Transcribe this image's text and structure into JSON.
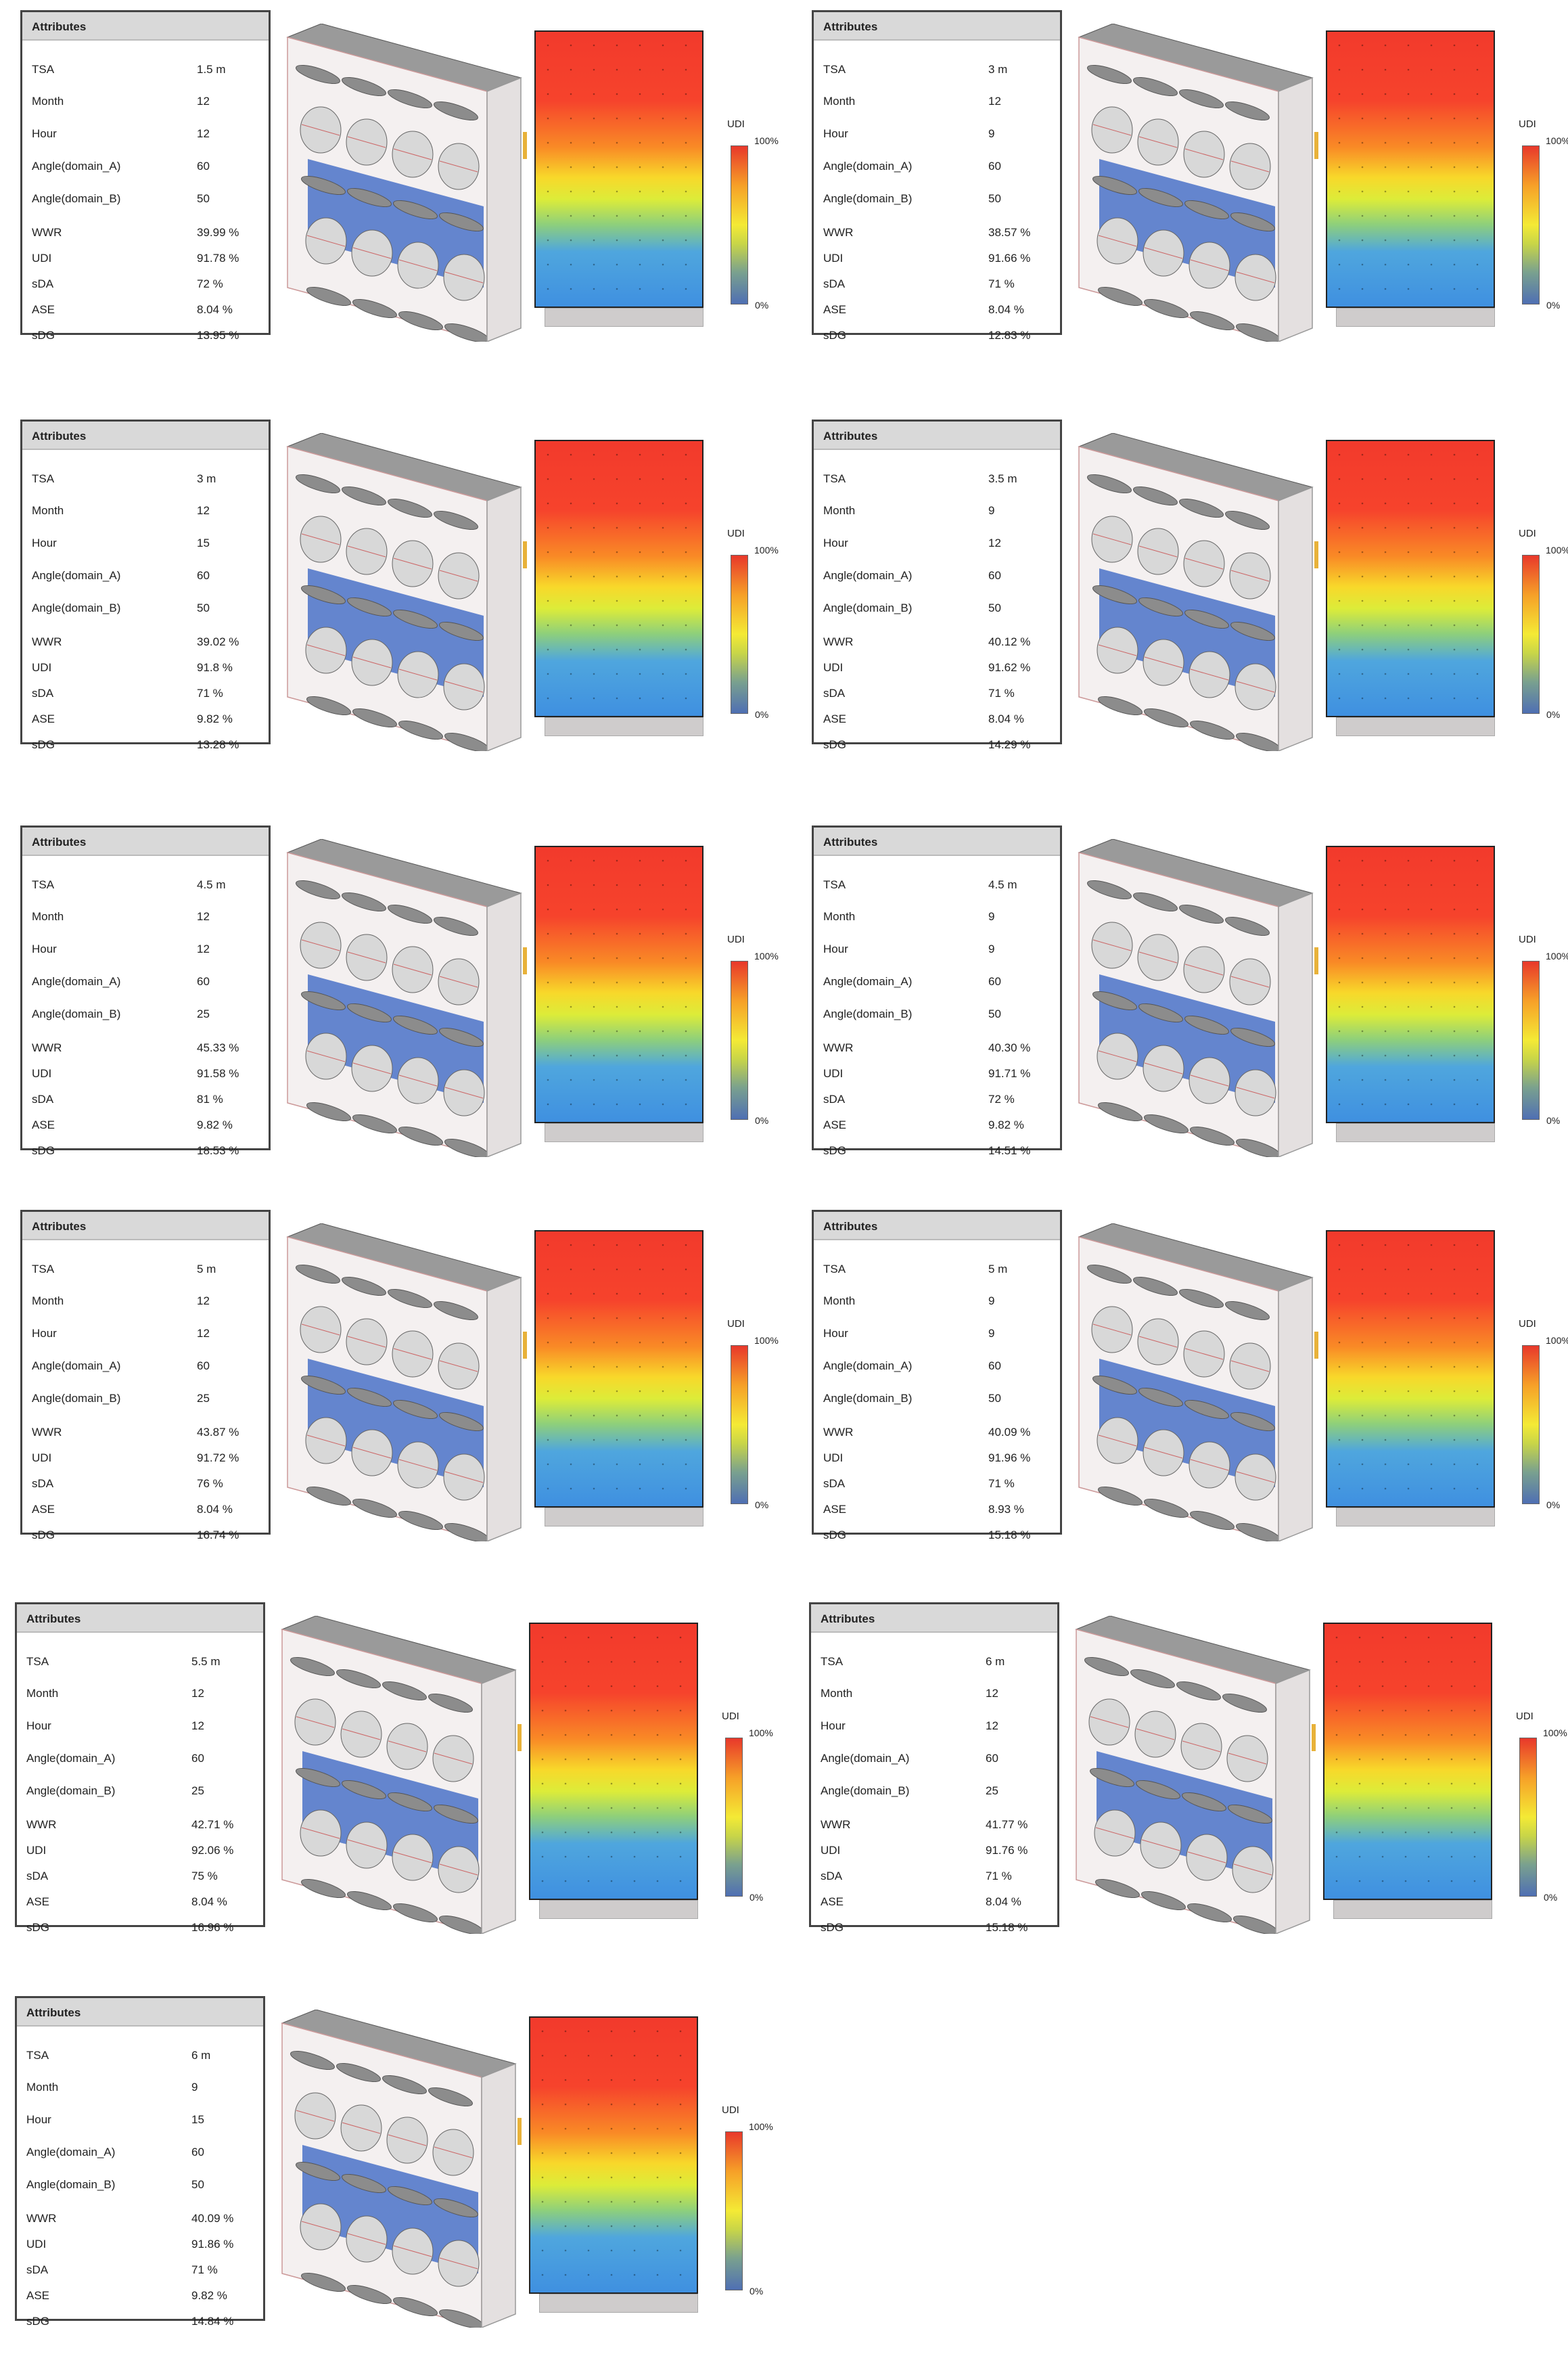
{
  "table_header": "Attributes",
  "legend": {
    "title": "UDI",
    "max_label": "100%",
    "min_label": "0%"
  },
  "colors": {
    "frame": "#ebe6e6",
    "lens": "#d8d8d8",
    "glass_blue": "#4a72c8",
    "heat_top": "#f23a2c",
    "heat_bottom": "#3f90e0"
  },
  "attribute_keys": [
    "TSA",
    "Month",
    "Hour",
    "Angle(domain_A)",
    "Angle(domain_B)",
    "WWR",
    "UDI",
    "sDA",
    "ASE",
    "sDG"
  ],
  "cases": [
    {
      "values": [
        "1.5 m",
        "12",
        "12",
        "60",
        "50",
        "39.99 %",
        "91.78 %",
        "72 %",
        "8.04 %",
        "13.95 %"
      ]
    },
    {
      "values": [
        "3 m",
        "12",
        "9",
        "60",
        "50",
        "38.57 %",
        "91.66 %",
        "71 %",
        "8.04 %",
        "12.83 %"
      ]
    },
    {
      "values": [
        "3 m",
        "12",
        "15",
        "60",
        "50",
        "39.02 %",
        "91.8 %",
        "71 %",
        "9.82 %",
        "13.28 %"
      ]
    },
    {
      "values": [
        "3.5 m",
        "9",
        "12",
        "60",
        "50",
        "40.12 %",
        "91.62 %",
        "71 %",
        "8.04 %",
        "14.29 %"
      ]
    },
    {
      "values": [
        "4.5 m",
        "12",
        "12",
        "60",
        "25",
        "45.33 %",
        "91.58 %",
        "81 %",
        "9.82 %",
        "18.53 %"
      ]
    },
    {
      "values": [
        "4.5 m",
        "9",
        "9",
        "60",
        "50",
        "40.30 %",
        "91.71 %",
        "72 %",
        "9.82 %",
        "14.51 %"
      ]
    },
    {
      "values": [
        "5 m",
        "12",
        "12",
        "60",
        "25",
        "43.87 %",
        "91.72 %",
        "76 %",
        "8.04 %",
        "16.74 %"
      ]
    },
    {
      "values": [
        "5 m",
        "9",
        "9",
        "60",
        "50",
        "40.09 %",
        "91.96 %",
        "71 %",
        "8.93 %",
        "15.18 %"
      ]
    },
    {
      "values": [
        "5.5 m",
        "12",
        "12",
        "60",
        "25",
        "42.71 %",
        "92.06 %",
        "75 %",
        "8.04 %",
        "16.96 %"
      ]
    },
    {
      "values": [
        "6 m",
        "12",
        "12",
        "60",
        "25",
        "41.77 %",
        "91.76 %",
        "71 %",
        "8.04 %",
        "15.18 %"
      ]
    },
    {
      "values": [
        "6 m",
        "9",
        "15",
        "60",
        "50",
        "40.09 %",
        "91.86 %",
        "71 %",
        "9.82 %",
        "14.84 %"
      ]
    }
  ]
}
